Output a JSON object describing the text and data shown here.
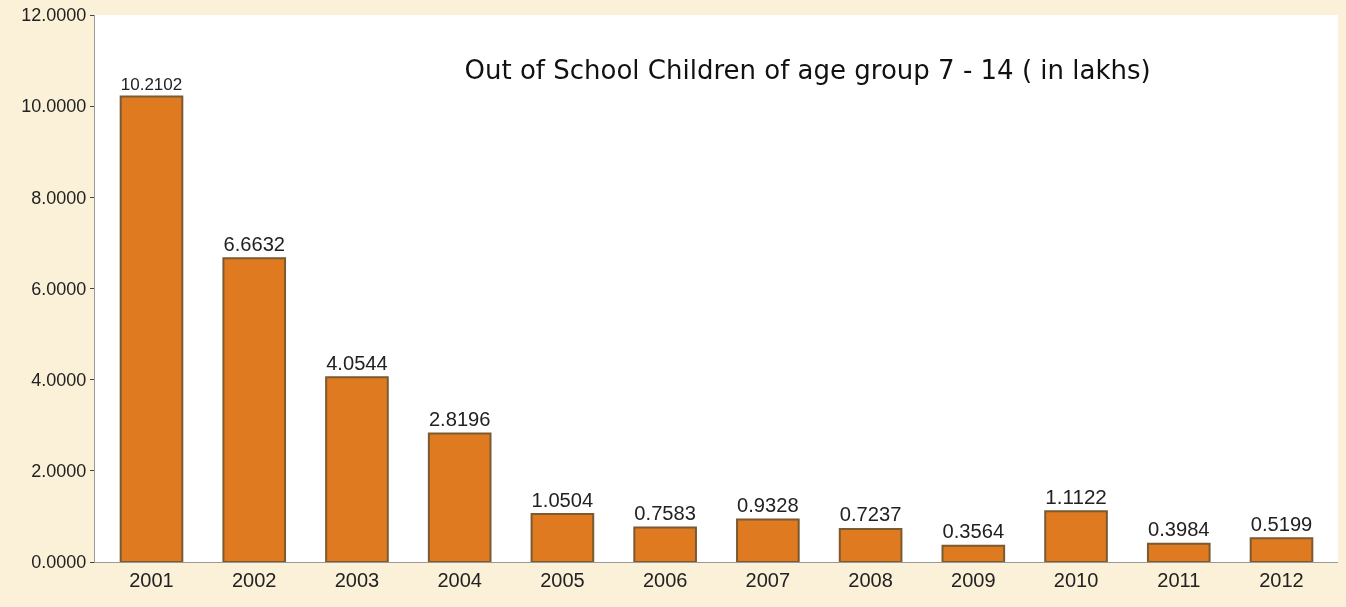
{
  "chart_data": {
    "type": "bar",
    "title": "Out of School Children of age group 7 - 14 ( in lakhs)",
    "categories": [
      "2001",
      "2002",
      "2003",
      "2004",
      "2005",
      "2006",
      "2007",
      "2008",
      "2009",
      "2010",
      "2011",
      "2012"
    ],
    "values": [
      10.2102,
      6.6632,
      4.0544,
      2.8196,
      1.0504,
      0.7583,
      0.9328,
      0.7237,
      0.3564,
      1.1122,
      0.3984,
      0.5199
    ],
    "color": "#e07a20",
    "ylim": [
      0,
      12
    ],
    "yticks": [
      {
        "value": 0,
        "label": "0.0000"
      },
      {
        "value": 2,
        "label": "2.0000"
      },
      {
        "value": 4,
        "label": "4.0000"
      },
      {
        "value": 6,
        "label": "6.0000"
      },
      {
        "value": 8,
        "label": "8.0000"
      },
      {
        "value": 10,
        "label": "10.0000"
      },
      {
        "value": 12,
        "label": "12.0000"
      }
    ],
    "data_labels": true,
    "grid": false
  }
}
